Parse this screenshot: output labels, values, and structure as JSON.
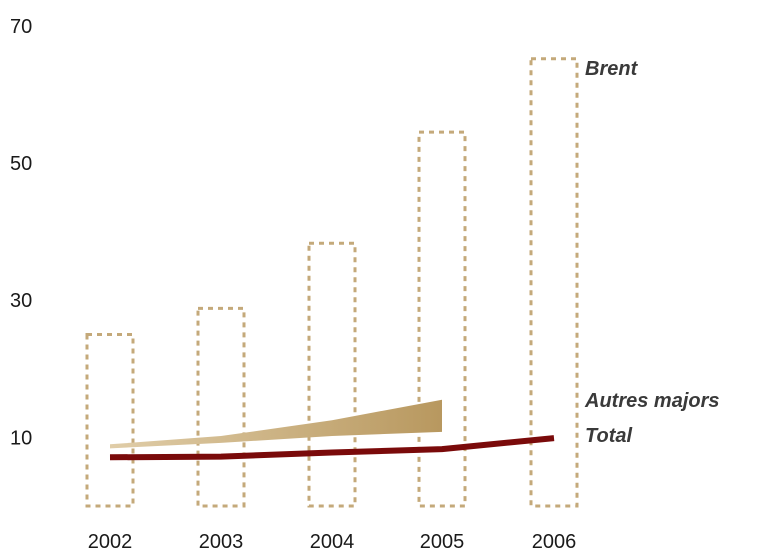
{
  "chart_data": {
    "type": "bar",
    "categories": [
      "2002",
      "2003",
      "2004",
      "2005",
      "2006"
    ],
    "ylim": [
      0,
      70
    ],
    "yticks": [
      10,
      30,
      50,
      70
    ],
    "grid": false,
    "series": [
      {
        "name": "Brent",
        "kind": "bar",
        "style": "dotted-outline",
        "color": "#c4a97a",
        "values": [
          25,
          28.8,
          38.3,
          54.5,
          65.2
        ]
      },
      {
        "name": "Autres majors",
        "kind": "band",
        "color": "#c9b07f",
        "categories": [
          "2002",
          "2003",
          "2004",
          "2005"
        ],
        "low": [
          8.4,
          9.2,
          10.2,
          10.8
        ],
        "high": [
          9.0,
          10.2,
          12.5,
          15.5
        ]
      },
      {
        "name": "Total",
        "kind": "line",
        "color": "#7a0a0a",
        "values": [
          7.1,
          7.2,
          7.8,
          8.3,
          9.9
        ]
      }
    ]
  }
}
